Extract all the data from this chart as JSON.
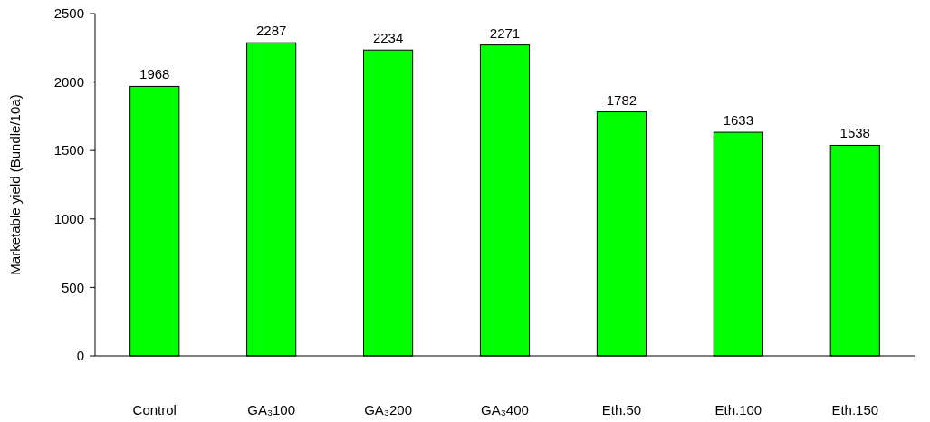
{
  "chart_data": {
    "type": "bar",
    "ylabel": "Marketable yield (Bundle/10a)",
    "categories": [
      "Control",
      "GA₃100",
      "GA₃200",
      "GA₃400",
      "Eth.50",
      "Eth.100",
      "Eth.150"
    ],
    "values": [
      1968,
      2287,
      2234,
      2271,
      1782,
      1633,
      1538
    ],
    "color": "#00ff00",
    "ylim": [
      0,
      2500
    ],
    "yticks": [
      0,
      500,
      1000,
      1500,
      2000,
      2500
    ],
    "data_labels": true,
    "grid": false
  }
}
